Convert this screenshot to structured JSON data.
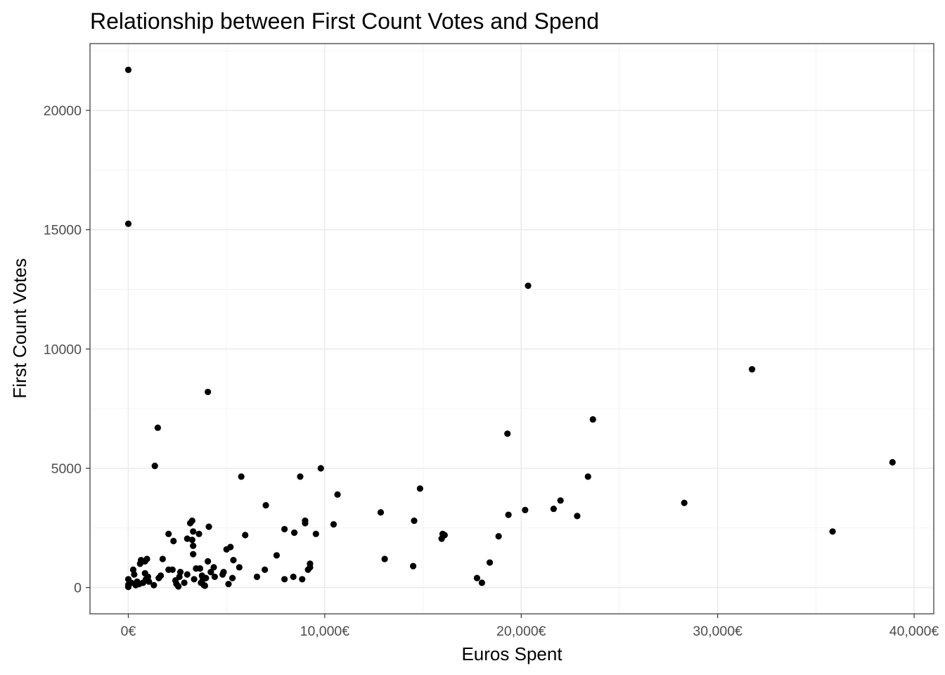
{
  "chart_data": {
    "type": "scatter",
    "title": "Relationship between First Count Votes and Spend",
    "xlabel": "Euros Spent",
    "ylabel": "First Count Votes",
    "xlim": [
      -1950,
      41000
    ],
    "ylim": [
      -1100,
      22800
    ],
    "x_ticks": [
      0,
      10000,
      20000,
      30000,
      40000
    ],
    "x_tick_labels": [
      "0€",
      "10,000€",
      "20,000€",
      "30,000€",
      "40,000€"
    ],
    "y_ticks": [
      0,
      5000,
      10000,
      15000,
      20000
    ],
    "y_tick_labels": [
      "0",
      "5000",
      "10000",
      "15000",
      "20000"
    ],
    "grid": true,
    "theme": "bw",
    "point_color": "#000000",
    "points": [
      [
        0,
        21700
      ],
      [
        0,
        15250
      ],
      [
        0,
        350
      ],
      [
        0,
        120
      ],
      [
        0,
        30
      ],
      [
        150,
        200
      ],
      [
        250,
        750
      ],
      [
        300,
        550
      ],
      [
        380,
        100
      ],
      [
        450,
        250
      ],
      [
        550,
        150
      ],
      [
        600,
        1000
      ],
      [
        650,
        1150
      ],
      [
        750,
        200
      ],
      [
        850,
        1100
      ],
      [
        850,
        600
      ],
      [
        900,
        350
      ],
      [
        950,
        1200
      ],
      [
        1000,
        450
      ],
      [
        1050,
        250
      ],
      [
        1300,
        100
      ],
      [
        1350,
        5100
      ],
      [
        1500,
        6700
      ],
      [
        1550,
        400
      ],
      [
        1650,
        500
      ],
      [
        1750,
        1200
      ],
      [
        2050,
        2250
      ],
      [
        2050,
        750
      ],
      [
        2250,
        750
      ],
      [
        2300,
        1950
      ],
      [
        2400,
        300
      ],
      [
        2450,
        150
      ],
      [
        2550,
        50
      ],
      [
        2600,
        450
      ],
      [
        2650,
        650
      ],
      [
        2850,
        200
      ],
      [
        3000,
        550
      ],
      [
        3000,
        2050
      ],
      [
        3150,
        2700
      ],
      [
        3250,
        2800
      ],
      [
        3250,
        2000
      ],
      [
        3300,
        2350
      ],
      [
        3300,
        1750
      ],
      [
        3300,
        1400
      ],
      [
        3350,
        350
      ],
      [
        3450,
        800
      ],
      [
        3600,
        2250
      ],
      [
        3650,
        800
      ],
      [
        3700,
        200
      ],
      [
        3750,
        500
      ],
      [
        3800,
        350
      ],
      [
        3850,
        100
      ],
      [
        3900,
        80
      ],
      [
        3950,
        400
      ],
      [
        4050,
        1100
      ],
      [
        4050,
        8200
      ],
      [
        4100,
        2550
      ],
      [
        4200,
        650
      ],
      [
        4350,
        850
      ],
      [
        4400,
        450
      ],
      [
        4800,
        550
      ],
      [
        4850,
        650
      ],
      [
        5000,
        1600
      ],
      [
        5100,
        150
      ],
      [
        5200,
        1700
      ],
      [
        5300,
        400
      ],
      [
        5350,
        1150
      ],
      [
        5650,
        850
      ],
      [
        5750,
        4650
      ],
      [
        5950,
        2200
      ],
      [
        6550,
        450
      ],
      [
        6950,
        750
      ],
      [
        7000,
        3450
      ],
      [
        7550,
        1350
      ],
      [
        7950,
        350
      ],
      [
        7950,
        2450
      ],
      [
        8400,
        450
      ],
      [
        8450,
        2300
      ],
      [
        8750,
        4650
      ],
      [
        8850,
        350
      ],
      [
        9000,
        2800
      ],
      [
        9000,
        2700
      ],
      [
        9150,
        750
      ],
      [
        9250,
        850
      ],
      [
        9250,
        1000
      ],
      [
        9550,
        2250
      ],
      [
        9800,
        5000
      ],
      [
        10450,
        2650
      ],
      [
        10650,
        3900
      ],
      [
        12850,
        3150
      ],
      [
        13050,
        1200
      ],
      [
        14500,
        900
      ],
      [
        14550,
        2800
      ],
      [
        14850,
        4150
      ],
      [
        15950,
        2050
      ],
      [
        16000,
        2250
      ],
      [
        16100,
        2200
      ],
      [
        17750,
        400
      ],
      [
        18000,
        200
      ],
      [
        18400,
        1050
      ],
      [
        18850,
        2150
      ],
      [
        19300,
        6450
      ],
      [
        19350,
        3050
      ],
      [
        20200,
        3250
      ],
      [
        20350,
        12650
      ],
      [
        21650,
        3300
      ],
      [
        22000,
        3650
      ],
      [
        22850,
        3000
      ],
      [
        23400,
        4650
      ],
      [
        23650,
        7050
      ],
      [
        28300,
        3550
      ],
      [
        31750,
        9150
      ],
      [
        35850,
        2350
      ],
      [
        38900,
        5250
      ]
    ]
  }
}
